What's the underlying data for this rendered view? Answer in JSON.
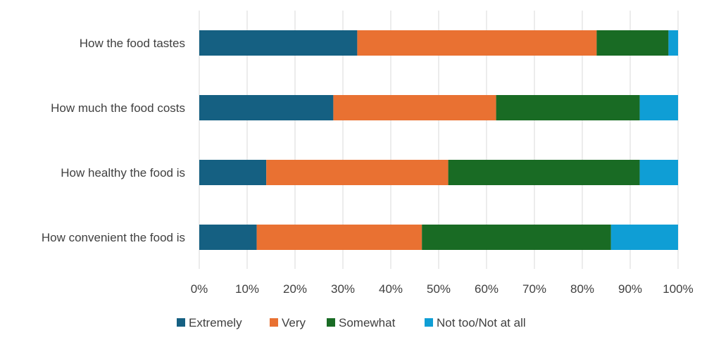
{
  "chart_data": {
    "type": "bar",
    "orientation": "horizontal",
    "stacked": true,
    "categories": [
      "How the food tastes",
      "How much the food costs",
      "How healthy the food is",
      "How convenient the food is"
    ],
    "series": [
      {
        "name": "Extremely",
        "color": "#156082",
        "values": [
          33,
          28,
          14,
          12
        ]
      },
      {
        "name": "Very",
        "color": "#E97132",
        "values": [
          50,
          34,
          38,
          34.5
        ]
      },
      {
        "name": "Somewhat",
        "color": "#196B24",
        "values": [
          15,
          30,
          40,
          39.5
        ]
      },
      {
        "name": "Not too/Not at all",
        "color": "#0F9ED5",
        "values": [
          2,
          8,
          8,
          14
        ]
      }
    ],
    "x_ticks": [
      "0%",
      "10%",
      "20%",
      "30%",
      "40%",
      "50%",
      "60%",
      "70%",
      "80%",
      "90%",
      "100%"
    ],
    "xlim": [
      0,
      100
    ],
    "grid": "vertical",
    "legend_position": "bottom",
    "title": "",
    "xlabel": "",
    "ylabel": ""
  }
}
